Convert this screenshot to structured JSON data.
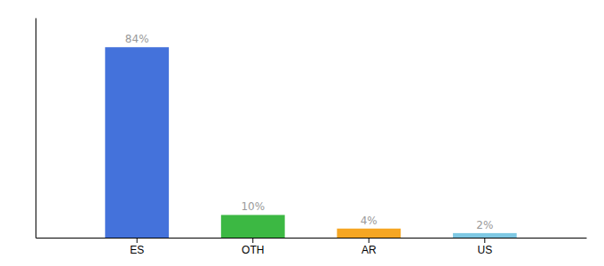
{
  "chart_data": {
    "type": "bar",
    "categories": [
      "ES",
      "OTH",
      "AR",
      "US"
    ],
    "values": [
      84,
      10,
      4,
      2
    ],
    "value_labels": [
      "84%",
      "10%",
      "4%",
      "2%"
    ],
    "data_labels": true,
    "colors": [
      "#4472db",
      "#3cb843",
      "#f5a623",
      "#7ec8e3"
    ],
    "ylim": [
      0,
      97
    ],
    "tick_labels": "x",
    "grid": false
  }
}
